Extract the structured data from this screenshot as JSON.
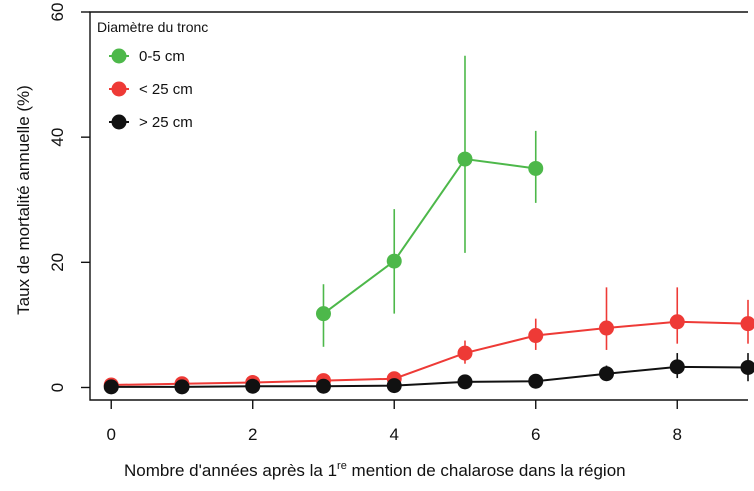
{
  "chart_data": {
    "type": "line",
    "xlabel_main": "Nombre d'années après la 1",
    "xlabel_sup": "re",
    "xlabel_tail": " mention de chalarose dans la région",
    "ylabel": "Taux de mortalité annuelle (%)",
    "xlim": [
      -0.3,
      9.0
    ],
    "ylim": [
      -2,
      60
    ],
    "x_ticks": [
      0,
      2,
      4,
      6,
      8
    ],
    "y_ticks": [
      0,
      20,
      40,
      60
    ],
    "legend": {
      "title": "Diamètre du tronc",
      "placement": "top-left"
    },
    "series": [
      {
        "name": "0-5 cm",
        "color": "#4db84a",
        "x": [
          3,
          4,
          5,
          6
        ],
        "y": [
          11.8,
          20.2,
          36.5,
          35.0
        ],
        "err_low": [
          6.5,
          11.8,
          21.5,
          29.5
        ],
        "err_high": [
          16.5,
          28.5,
          53.0,
          41.0
        ]
      },
      {
        "name": "< 25 cm",
        "color": "#ee3a36",
        "x": [
          0,
          1,
          2,
          3,
          4,
          5,
          6,
          7,
          8,
          9
        ],
        "y": [
          0.4,
          0.6,
          0.8,
          1.1,
          1.4,
          5.5,
          8.3,
          9.5,
          10.5,
          10.2
        ],
        "err_low": [
          0.1,
          0.2,
          0.3,
          0.5,
          0.6,
          3.8,
          6.0,
          6.0,
          7.0,
          7.0
        ],
        "err_high": [
          0.8,
          1.0,
          1.4,
          1.8,
          2.4,
          7.5,
          11.0,
          16.0,
          16.0,
          14.0
        ]
      },
      {
        "name": "> 25 cm",
        "color": "#111111",
        "x": [
          0,
          1,
          2,
          3,
          4,
          5,
          6,
          7,
          8,
          9
        ],
        "y": [
          0.1,
          0.1,
          0.2,
          0.2,
          0.3,
          0.9,
          1.0,
          2.2,
          3.3,
          3.2
        ],
        "err_low": [
          0.0,
          0.0,
          0.0,
          0.0,
          0.0,
          0.3,
          0.4,
          1.2,
          1.5,
          1.0
        ],
        "err_high": [
          0.3,
          0.3,
          0.4,
          0.5,
          0.6,
          1.6,
          1.8,
          3.5,
          5.5,
          5.5
        ]
      }
    ]
  }
}
